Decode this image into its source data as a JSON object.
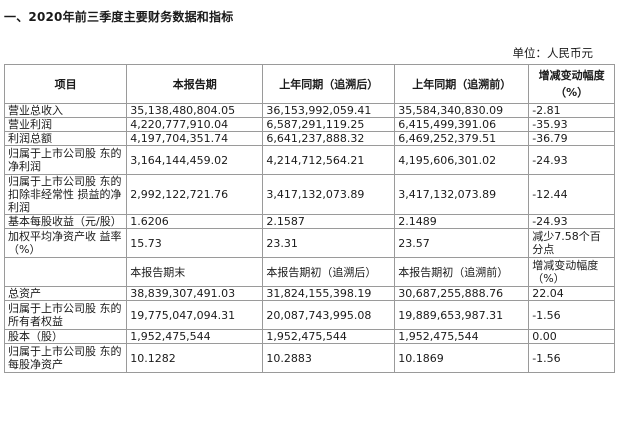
{
  "title": "一、2020年前三季度主要财务数据和指标",
  "unit": "单位：人民币元",
  "header": [
    "项目",
    "本报告期",
    "上年同期（追溯后）",
    "上年同期（追溯前）",
    "增减变动幅度（%）"
  ],
  "rows_top": [
    {
      "label": "营业总收入",
      "v1": "35,138,480,804.05",
      "v2": "36,153,992,059.41",
      "v3": "35,584,340,830.09",
      "v4": "-2.81"
    },
    {
      "label": "营业利润",
      "v1": "4,220,777,910.04",
      "v2": "6,587,291,119.25",
      "v3": "6,415,499,391.06",
      "v4": "-35.93"
    },
    {
      "label": "利润总额",
      "v1": "4,197,704,351.74",
      "v2": "6,641,237,888.32",
      "v3": "6,469,252,379.51",
      "v4": "-36.79"
    },
    {
      "label": "归属于上市公司股 东的净利润",
      "v1": "3,164,144,459.02",
      "v2": "4,214,712,564.21",
      "v3": "4,195,606,301.02",
      "v4": "-24.93"
    },
    {
      "label": "归属于上市公司股 东的扣除非经常性 损益的净利润",
      "v1": "2,992,122,721.76",
      "v2": "3,417,132,073.89",
      "v3": "3,417,132,073.89",
      "v4": "-12.44"
    },
    {
      "label": "基本每股收益（元/股）",
      "v1": "1.6206",
      "v2": "2.1587",
      "v3": "2.1489",
      "v4": "-24.93"
    },
    {
      "label": "加权平均净资产收 益率（%）",
      "v1": "15.73",
      "v2": "23.31",
      "v3": "23.57",
      "v4": "减少7.58个百分点"
    }
  ],
  "subheader": [
    "",
    "本报告期末",
    "本报告期初（追溯后）",
    "本报告期初（追溯前）",
    "增减变动幅度（%）"
  ],
  "rows_bottom": [
    {
      "label": "总资产",
      "v1": "38,839,307,491.03",
      "v2": "31,824,155,398.19",
      "v3": "30,687,255,888.76",
      "v4": "22.04"
    },
    {
      "label": "归属于上市公司股 东的所有者权益",
      "v1": "19,775,047,094.31",
      "v2": "20,087,743,995.08",
      "v3": "19,889,653,987.31",
      "v4": "-1.56"
    },
    {
      "label": "股本（股）",
      "v1": "1,952,475,544",
      "v2": "1,952,475,544",
      "v3": "1,952,475,544",
      "v4": "0.00"
    },
    {
      "label": "归属于上市公司股 东的每股净资产",
      "v1": "10.1282",
      "v2": "10.2883",
      "v3": "10.1869",
      "v4": "-1.56"
    }
  ]
}
